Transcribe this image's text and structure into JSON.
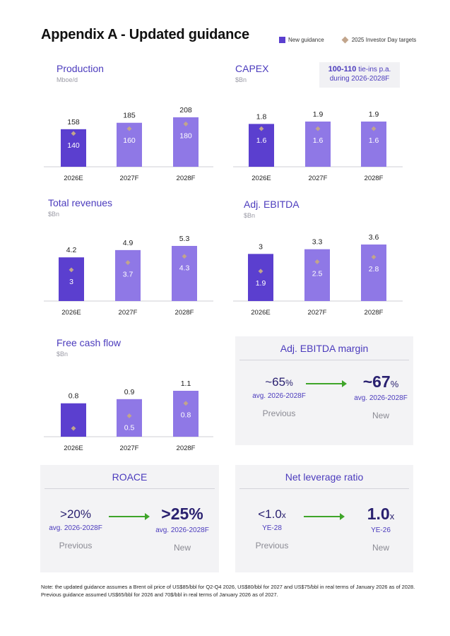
{
  "title": "Appendix A - Updated guidance",
  "legend": {
    "new": "New guidance",
    "target": "2025 Investor Day targets"
  },
  "colors": {
    "bar_dark": "#5b3fcf",
    "bar_light": "#8f78e6",
    "target": "#c2a58c",
    "accent": "#4b3bbd",
    "arrow": "#3fa52a"
  },
  "capex_callout": {
    "value": "100-110",
    "text1": " tie-ins p.a.",
    "text2": "during 2026-2028F"
  },
  "chart_data": [
    {
      "id": "production",
      "type": "bar",
      "title": "Production",
      "unit": "Mboe/d",
      "categories": [
        "2026E",
        "2027F",
        "2028F"
      ],
      "series": [
        {
          "name": "New guidance",
          "values": [
            158,
            185,
            208
          ]
        },
        {
          "name": "2025 Investor Day targets",
          "values": [
            140,
            160,
            180
          ]
        }
      ]
    },
    {
      "id": "capex",
      "type": "bar",
      "title": "CAPEX",
      "unit": "$Bn",
      "categories": [
        "2026E",
        "2027F",
        "2028F"
      ],
      "series": [
        {
          "name": "New guidance",
          "values": [
            1.8,
            1.9,
            1.9
          ]
        },
        {
          "name": "2025 Investor Day targets",
          "values": [
            1.6,
            1.6,
            1.6
          ]
        }
      ]
    },
    {
      "id": "revenues",
      "type": "bar",
      "title": "Total revenues",
      "unit": "$Bn",
      "categories": [
        "2026E",
        "2027F",
        "2028F"
      ],
      "series": [
        {
          "name": "New guidance",
          "values": [
            4.2,
            4.9,
            5.3
          ]
        },
        {
          "name": "2025 Investor Day targets",
          "values": [
            3.0,
            3.7,
            4.3
          ]
        }
      ]
    },
    {
      "id": "ebitda",
      "type": "bar",
      "title": "Adj. EBITDA",
      "unit": "$Bn",
      "categories": [
        "2026E",
        "2027F",
        "2028F"
      ],
      "series": [
        {
          "name": "New guidance",
          "values": [
            3.0,
            3.3,
            3.6
          ]
        },
        {
          "name": "2025 Investor Day targets",
          "values": [
            1.9,
            2.5,
            2.8
          ]
        }
      ]
    },
    {
      "id": "fcf",
      "type": "bar",
      "title": "Free cash flow",
      "unit": "$Bn",
      "categories": [
        "2026E",
        "2027F",
        "2028F"
      ],
      "series": [
        {
          "name": "New guidance",
          "values": [
            0.8,
            0.9,
            1.1
          ]
        },
        {
          "name": "2025 Investor Day targets",
          "values": [
            0.2,
            0.5,
            0.8
          ]
        }
      ]
    }
  ],
  "panels": {
    "margin": {
      "title": "Adj. EBITDA margin",
      "prev": {
        "value": "~65",
        "suffix": "%",
        "sub": "avg. 2026-2028F",
        "label": "Previous"
      },
      "new": {
        "value": "~67",
        "suffix": "%",
        "sub": "avg. 2026-2028F",
        "label": "New"
      }
    },
    "roace": {
      "title": "ROACE",
      "prev": {
        "value": ">20",
        "suffix": "%",
        "sub": "avg. 2026-2028F",
        "label": "Previous"
      },
      "new": {
        "value": ">25",
        "suffix": "%",
        "sub": "avg. 2026-2028F",
        "label": "New"
      }
    },
    "leverage": {
      "title": "Net leverage ratio",
      "prev": {
        "value": "<1.0",
        "suffix": "x",
        "sub": "YE-28",
        "label": "Previous"
      },
      "new": {
        "value": "1.0",
        "suffix": "x",
        "sub": "YE-26",
        "label": "New"
      }
    }
  },
  "note": "Note: the updated guidance assumes a Brent oil price of US$85/bbl for Q2-Q4 2026, US$80/bbl for 2027 and US$75/bbl in real terms of January 2026 as of 2028. Previous guidance assumed US$65/bbl for 2026 and 70$/bbl in real terms of January 2026 as of 2027."
}
